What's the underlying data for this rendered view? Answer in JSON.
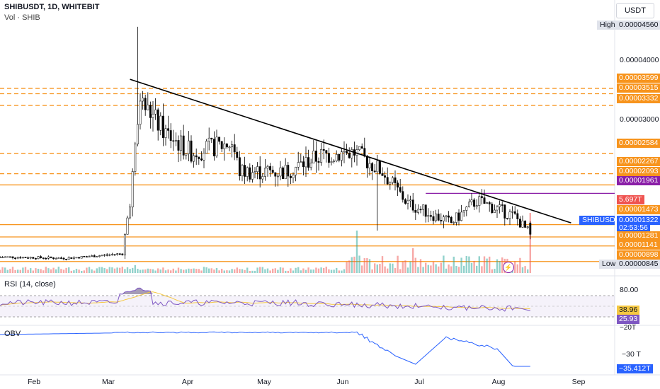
{
  "header": {
    "symbol_line": "SHIBUSDT, 1D, WHITEBIT",
    "volume_line": "Vol · SHIB",
    "currency": "USDT"
  },
  "price_axis": {
    "labels": [
      "0.00004000",
      "0.00003000"
    ],
    "high_label": "High",
    "high_value": "0.00004560",
    "low_label": "Low",
    "low_value": "0.00000845"
  },
  "level_tags": [
    {
      "value": "0.00003599",
      "color": "orange"
    },
    {
      "value": "0.00003515",
      "color": "orange"
    },
    {
      "value": "0.00003332",
      "color": "orange"
    },
    {
      "value": "0.00002584",
      "color": "orange"
    },
    {
      "value": "0.00002267",
      "color": "orange"
    },
    {
      "value": "0.00002093",
      "color": "orange"
    },
    {
      "value": "0.00001961",
      "color": "purple"
    },
    {
      "value": "5.697T",
      "color": "red"
    },
    {
      "value": "0.00001473",
      "color": "orange"
    },
    {
      "value": "0.00001322",
      "color": "blue"
    },
    {
      "value": "02:53:56",
      "color": "blue"
    },
    {
      "value": "0.00001281",
      "color": "orange"
    },
    {
      "value": "0.00001141",
      "color": "orange"
    },
    {
      "value": "0.00000898",
      "color": "orange"
    }
  ],
  "symbol_tag": "SHIBUSDT",
  "rsi": {
    "title": "RSI (14, close)",
    "axis_top": "80.00",
    "value": "38.96",
    "ma_value": "25.93",
    "axis_bottom": "−20T"
  },
  "obv": {
    "title": "OBV",
    "axis_label": "−30 T",
    "value": "−35.412T"
  },
  "time_axis": [
    "Feb",
    "Mar",
    "Apr",
    "May",
    "Jun",
    "Jul",
    "Aug",
    "Sep"
  ],
  "colors": {
    "up": "#26a69a",
    "down": "#ef5350",
    "level": "#f7941d",
    "purple_level": "#8a1ea7",
    "trendline": "#000000",
    "rsi": "#7e57c2",
    "rsi_ma": "#f5c842",
    "obv": "#2962ff"
  },
  "chart_data": {
    "type": "candlestick",
    "symbol": "SHIBUSDT",
    "interval": "1D",
    "exchange": "WHITEBIT",
    "ylim": [
      8.4e-06,
      4.58e-05
    ],
    "key_path": [
      {
        "date": "2024-01-10",
        "close": 9.7e-06
      },
      {
        "date": "2024-02-05",
        "close": 9.5e-06
      },
      {
        "date": "2024-02-27",
        "close": 1.02e-05
      },
      {
        "date": "2024-03-01",
        "close": 1.85e-05
      },
      {
        "date": "2024-03-05",
        "close": 3.4e-05
      },
      {
        "date": "2024-03-15",
        "close": 2.9e-05
      },
      {
        "date": "2024-03-25",
        "close": 2.6e-05
      },
      {
        "date": "2024-04-10",
        "close": 2.75e-05
      },
      {
        "date": "2024-04-13",
        "close": 2.3e-05
      },
      {
        "date": "2024-05-01",
        "close": 2.3e-05
      },
      {
        "date": "2024-05-15",
        "close": 2.55e-05
      },
      {
        "date": "2024-05-28",
        "close": 2.6e-05
      },
      {
        "date": "2024-06-08",
        "close": 2.3e-05
      },
      {
        "date": "2024-06-18",
        "close": 1.8e-05
      },
      {
        "date": "2024-07-05",
        "close": 1.5e-05
      },
      {
        "date": "2024-07-15",
        "close": 1.85e-05
      },
      {
        "date": "2024-07-30",
        "close": 1.6e-05
      },
      {
        "date": "2024-08-05",
        "close": 1.32e-05
      }
    ],
    "levels": [
      3.599e-05,
      3.515e-05,
      3.332e-05,
      2.584e-05,
      2.267e-05,
      2.093e-05,
      1.961e-05,
      1.473e-05,
      1.281e-05,
      1.141e-05,
      8.98e-06
    ],
    "trendline": {
      "start": {
        "date": "2024-03-01",
        "price": 3.74e-05
      },
      "end": {
        "date": "2024-08-21",
        "price": 1.5e-05
      }
    },
    "high": 4.56e-05,
    "low": 8.45e-06,
    "last": 1.322e-05
  }
}
